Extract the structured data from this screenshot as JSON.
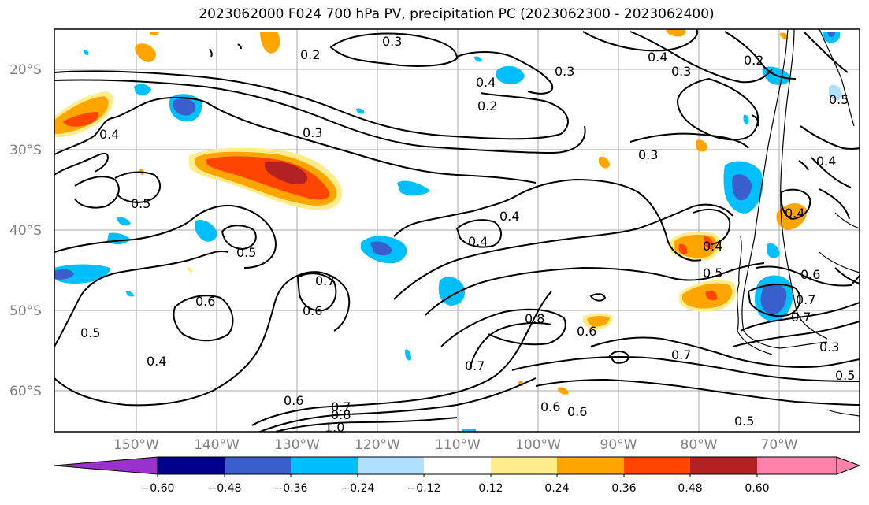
{
  "title": "2023062000 F024 700 hPa PV, precipitation PC (2023062300 - 2023062400)",
  "map": {
    "lat_labels": [
      "20°S",
      "30°S",
      "40°S",
      "50°S",
      "60°S"
    ],
    "lon_labels": [
      "150°W",
      "140°W",
      "130°W",
      "120°W",
      "110°W",
      "100°W",
      "90°W",
      "80°W",
      "70°W"
    ],
    "contour_labels": [
      "0.2",
      "0.3",
      "0.4",
      "0.3",
      "0.4",
      "0.3",
      "0.2",
      "0.3",
      "0.2",
      "0.4",
      "0.3",
      "0.5",
      "0.4",
      "0.5",
      "0.5",
      "0.4",
      "0.4",
      "0.4",
      "0.4",
      "0.5",
      "0.6",
      "0.7",
      "0.6",
      "0.6",
      "0.7",
      "0.8",
      "0.6",
      "0.5",
      "0.4",
      "0.7",
      "0.7",
      "0.6",
      "0.6",
      "0.6",
      "0.7",
      "0.8",
      "1.0",
      "0.5",
      "0.5",
      "0.3",
      "0.7"
    ],
    "colors": {
      "grid": "#a9a9a9",
      "contour": "#000000",
      "coast": "#000000"
    }
  },
  "colorbar": {
    "tick_labels": [
      "−0.60",
      "−0.48",
      "−0.36",
      "−0.24",
      "−0.12",
      "0.12",
      "0.24",
      "0.36",
      "0.48",
      "0.60"
    ],
    "colors": [
      "#9932cc",
      "#00008b",
      "#3a5fcd",
      "#00bfff",
      "#b0e2ff",
      "#ffffff",
      "#ffec8b",
      "#ffa500",
      "#ff4500",
      "#b22222",
      "#ff82ab"
    ]
  }
}
